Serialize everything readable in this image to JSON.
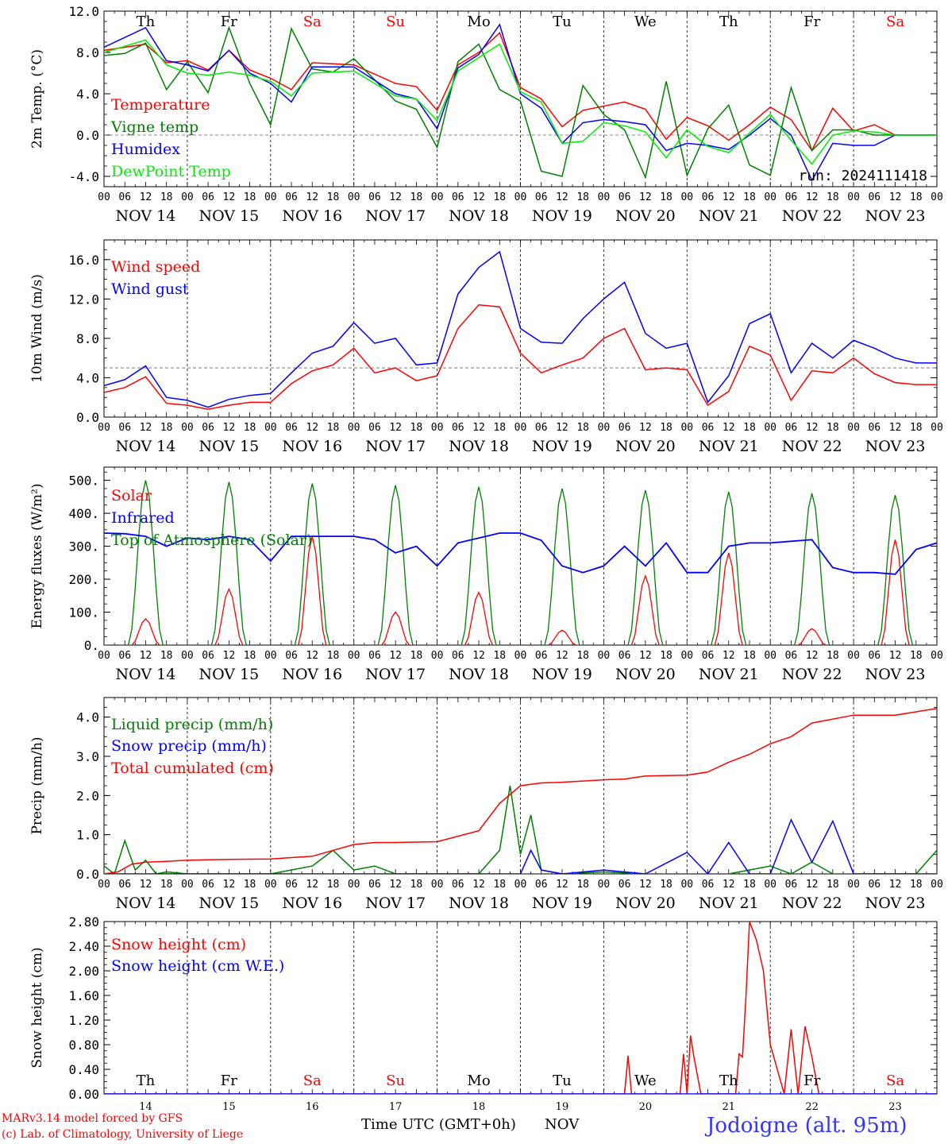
{
  "run_label": "run: 2024111418",
  "footer": {
    "credit_line1": "MARv3.14 model forced by GFS",
    "credit_line2": "(c) Lab. of Climatology, University of Liege",
    "time_axis_label": "Time UTC (GMT+0h)",
    "month_label": "NOV",
    "station": "Jodoigne (alt. 95m)"
  },
  "day_labels": [
    "Th",
    "Fr",
    "Sa",
    "Su",
    "Mo",
    "Tu",
    "We",
    "Th",
    "Fr",
    "Sa"
  ],
  "weekend_color": "#ff0000",
  "weekday_color": "#000000",
  "date_labels": [
    "NOV 14",
    "NOV 15",
    "NOV 16",
    "NOV 17",
    "NOV 18",
    "NOV 19",
    "NOV 20",
    "NOV 21",
    "NOV 22",
    "NOV 23"
  ],
  "bottom_day_numbers": [
    "14",
    "15",
    "16",
    "17",
    "18",
    "19",
    "20",
    "21",
    "22",
    "23"
  ],
  "hour_ticks": [
    "00",
    "06",
    "12",
    "18"
  ],
  "last_hour_tick": "00",
  "chart_data": [
    {
      "type": "line",
      "ylabel": "2m Temp. (°C)",
      "ylim": [
        -5,
        12
      ],
      "yticks": [
        "12.0",
        "8.0",
        "4.0",
        "0.0",
        "-4.0"
      ],
      "ytick_values": [
        12,
        8,
        4,
        0,
        -4
      ],
      "reference_line": 0,
      "x_unit": "hours since Nov 14 00 UTC",
      "series": [
        {
          "name": "Temperature",
          "color": "#ff0000",
          "x": [
            0,
            12,
            18,
            24,
            30,
            36,
            42,
            48,
            54,
            60,
            66,
            72,
            84,
            90,
            96,
            102,
            108,
            114,
            120,
            126,
            132,
            138,
            144,
            150,
            156,
            162,
            168,
            174,
            180,
            186,
            192,
            198,
            204,
            210,
            216,
            222,
            228,
            234,
            240
          ],
          "values": [
            8.2,
            8.8,
            7.0,
            7.2,
            6.3,
            8.2,
            6.3,
            5.5,
            4.4,
            7.0,
            6.9,
            6.8,
            5.0,
            4.7,
            2.4,
            6.8,
            8.0,
            9.9,
            4.6,
            3.5,
            0.8,
            2.4,
            2.8,
            3.2,
            2.5,
            -0.4,
            1.7,
            0.9,
            -0.5,
            1.0,
            2.7,
            1.5,
            -1.5,
            2.6,
            0.4,
            1.0,
            0.0,
            0.0,
            0.0
          ]
        },
        {
          "name": "Vigne temp",
          "color": "#008000",
          "x": [
            0,
            6,
            12,
            18,
            24,
            30,
            36,
            42,
            48,
            54,
            60,
            66,
            72,
            84,
            90,
            96,
            102,
            108,
            114,
            120,
            126,
            132,
            138,
            144,
            150,
            156,
            162,
            168,
            174,
            180,
            186,
            192,
            198,
            204,
            210,
            216,
            222,
            228,
            234,
            240
          ],
          "values": [
            7.7,
            7.9,
            8.9,
            4.4,
            7.1,
            4.1,
            10.4,
            5.0,
            1.0,
            10.3,
            6.4,
            6.1,
            7.4,
            3.3,
            2.5,
            -1.2,
            7.1,
            8.8,
            4.4,
            3.3,
            -3.5,
            -4.0,
            4.8,
            2.0,
            0.5,
            -4.1,
            5.2,
            -3.9,
            0.6,
            2.9,
            -2.9,
            -3.9,
            4.6,
            -1.5,
            0.5,
            0.5,
            0.0,
            0.0,
            0.0,
            0.0
          ]
        },
        {
          "name": "Humidex",
          "color": "#0000ff",
          "x": [
            0,
            12,
            18,
            24,
            30,
            36,
            42,
            48,
            54,
            60,
            66,
            72,
            84,
            90,
            96,
            102,
            108,
            114,
            120,
            126,
            132,
            138,
            144,
            150,
            156,
            162,
            168,
            174,
            180,
            186,
            192,
            198,
            204,
            210,
            216,
            222,
            228,
            234,
            240
          ],
          "values": [
            8.5,
            10.4,
            7.2,
            6.8,
            6.2,
            8.2,
            6.0,
            5.0,
            3.2,
            6.6,
            6.6,
            6.6,
            4.0,
            3.5,
            0.6,
            6.5,
            7.8,
            10.7,
            4.0,
            2.6,
            -0.8,
            1.2,
            1.5,
            1.3,
            1.0,
            -1.5,
            -0.8,
            -1.0,
            -1.4,
            0.0,
            1.6,
            0.0,
            -4.4,
            -0.8,
            -1.0,
            -1.0,
            0.0,
            0.0,
            0.0
          ]
        },
        {
          "name": "DewPoint Temp",
          "color": "#00ee00",
          "x": [
            0,
            12,
            18,
            24,
            30,
            36,
            42,
            48,
            54,
            60,
            66,
            72,
            84,
            90,
            96,
            102,
            108,
            114,
            120,
            126,
            132,
            138,
            144,
            150,
            156,
            162,
            168,
            174,
            180,
            186,
            192,
            198,
            204,
            210,
            216,
            222,
            228,
            234,
            240
          ],
          "values": [
            8.0,
            9.2,
            6.8,
            6.0,
            5.8,
            6.1,
            5.8,
            5.2,
            3.8,
            6.0,
            6.1,
            6.2,
            3.8,
            3.5,
            1.4,
            6.2,
            7.5,
            8.8,
            4.2,
            3.2,
            -0.8,
            -0.6,
            1.2,
            0.9,
            0.3,
            -2.2,
            0.5,
            -1.1,
            -1.7,
            0.2,
            2.0,
            -0.5,
            -2.8,
            0.0,
            0.4,
            0.3,
            0.0,
            0.0,
            0.0
          ]
        }
      ]
    },
    {
      "type": "line",
      "ylabel": "10m Wind (m/s)",
      "ylim": [
        0,
        18
      ],
      "yticks": [
        "16.0",
        "12.0",
        "8.0",
        "4.0",
        "0.0"
      ],
      "ytick_values": [
        16,
        12,
        8,
        4,
        0
      ],
      "reference_line": 5,
      "x_unit": "hours since Nov 14 00 UTC",
      "series": [
        {
          "name": "Wind speed",
          "color": "#ff0000",
          "x": [
            0,
            6,
            12,
            18,
            24,
            30,
            36,
            42,
            48,
            54,
            60,
            66,
            72,
            78,
            84,
            90,
            96,
            102,
            108,
            114,
            120,
            126,
            132,
            138,
            144,
            150,
            156,
            162,
            168,
            174,
            180,
            186,
            192,
            198,
            204,
            210,
            216,
            222,
            228,
            234,
            240
          ],
          "values": [
            2.5,
            3.0,
            4.1,
            1.4,
            1.2,
            0.8,
            1.2,
            1.5,
            1.5,
            3.4,
            4.7,
            5.3,
            7.0,
            4.5,
            5.0,
            3.7,
            4.2,
            9.0,
            11.4,
            11.2,
            6.5,
            4.5,
            5.3,
            6.0,
            8.0,
            9.0,
            4.8,
            5.0,
            4.8,
            1.2,
            2.6,
            7.2,
            6.3,
            1.7,
            4.7,
            4.5,
            6.0,
            4.4,
            3.5,
            3.3,
            3.3
          ]
        },
        {
          "name": "Wind gust",
          "color": "#0000ff",
          "x": [
            0,
            6,
            12,
            18,
            24,
            30,
            36,
            42,
            48,
            54,
            60,
            66,
            72,
            78,
            84,
            90,
            96,
            102,
            108,
            114,
            120,
            126,
            132,
            138,
            144,
            150,
            156,
            162,
            168,
            174,
            180,
            186,
            192,
            198,
            204,
            210,
            216,
            222,
            228,
            234,
            240
          ],
          "values": [
            3.2,
            3.8,
            5.2,
            2.0,
            1.7,
            1.0,
            1.8,
            2.2,
            2.4,
            4.5,
            6.5,
            7.2,
            9.6,
            7.5,
            8.0,
            5.3,
            5.5,
            12.5,
            15.2,
            16.8,
            9.0,
            7.6,
            7.5,
            10.0,
            12.0,
            13.7,
            8.5,
            7.0,
            7.5,
            1.5,
            4.2,
            9.5,
            10.5,
            4.5,
            7.5,
            6.0,
            7.8,
            7.0,
            6.0,
            5.5,
            5.5
          ]
        }
      ]
    },
    {
      "type": "line",
      "ylabel": "Energy fluxes (W/m²)",
      "ylim": [
        0,
        540
      ],
      "yticks": [
        "500.",
        "400.",
        "300.",
        "200.",
        "100.",
        "0."
      ],
      "ytick_values": [
        500,
        400,
        300,
        200,
        100,
        0
      ],
      "x_unit": "hours since Nov 14 00 UTC",
      "daylight_peaks": {
        "top_of_atmosphere": [
          500,
          495,
          490,
          485,
          480,
          475,
          470,
          465,
          460,
          455
        ],
        "solar": [
          80,
          170,
          330,
          100,
          160,
          45,
          210,
          280,
          50,
          320
        ]
      },
      "series": [
        {
          "name": "Solar",
          "color": "#ff0000"
        },
        {
          "name": "Infrared",
          "color": "#0000ff",
          "x": [
            0,
            6,
            12,
            18,
            24,
            30,
            36,
            42,
            48,
            54,
            60,
            66,
            72,
            78,
            84,
            90,
            96,
            102,
            108,
            114,
            120,
            126,
            132,
            138,
            144,
            150,
            156,
            162,
            168,
            174,
            180,
            186,
            192,
            198,
            204,
            210,
            216,
            222,
            228,
            234,
            240
          ],
          "values": [
            340,
            338,
            330,
            300,
            325,
            320,
            330,
            320,
            255,
            330,
            330,
            330,
            330,
            320,
            280,
            300,
            240,
            310,
            325,
            340,
            340,
            318,
            240,
            220,
            240,
            300,
            240,
            310,
            220,
            220,
            300,
            310,
            310,
            315,
            320,
            235,
            220,
            220,
            215,
            290,
            310
          ]
        },
        {
          "name": "Top of Atmosphere (Solar)",
          "color": "#008000"
        }
      ]
    },
    {
      "type": "line",
      "ylabel": "Precip (mm/h)",
      "ylim": [
        0,
        4.5
      ],
      "yticks": [
        "4.0",
        "3.0",
        "2.0",
        "1.0",
        "0.0"
      ],
      "ytick_values": [
        4,
        3,
        2,
        1,
        0
      ],
      "x_unit": "hours since Nov 14 00 UTC",
      "series": [
        {
          "name": "Liquid precip (mm/h)",
          "color": "#008000",
          "x": [
            0,
            3,
            6,
            9,
            12,
            15,
            18,
            24,
            48,
            60,
            66,
            72,
            78,
            84,
            96,
            108,
            114,
            117,
            120,
            123,
            126,
            132,
            144,
            156,
            168,
            180,
            192,
            198,
            204,
            210,
            216,
            222,
            228,
            234,
            240
          ],
          "values": [
            0.2,
            0.0,
            0.85,
            0.1,
            0.35,
            0.0,
            0.05,
            0.0,
            0.0,
            0.2,
            0.6,
            0.1,
            0.2,
            0.0,
            0.0,
            0.0,
            0.6,
            2.25,
            0.5,
            1.5,
            0.1,
            0.0,
            0.05,
            0.0,
            0.0,
            0.0,
            0.2,
            0.0,
            0.3,
            0.0,
            0.0,
            0.0,
            0.0,
            0.0,
            0.6
          ]
        },
        {
          "name": "Snow precip (mm/h)",
          "color": "#0000ff",
          "x": [
            0,
            114,
            120,
            123,
            126,
            132,
            144,
            156,
            168,
            174,
            180,
            186,
            192,
            198,
            204,
            210,
            216,
            222,
            228,
            234,
            240
          ],
          "values": [
            0.0,
            0.0,
            0.0,
            0.6,
            0.1,
            0.0,
            0.1,
            0.0,
            0.55,
            0.0,
            0.8,
            0.0,
            0.0,
            1.38,
            0.3,
            1.35,
            0.0,
            0.0,
            0.0,
            0.0,
            0.0
          ]
        },
        {
          "name": "Total cumulated (cm)",
          "color": "#ff0000",
          "x": [
            0,
            4,
            8,
            12,
            18,
            24,
            36,
            48,
            60,
            72,
            78,
            84,
            96,
            108,
            114,
            120,
            126,
            132,
            144,
            150,
            156,
            168,
            174,
            180,
            186,
            192,
            198,
            204,
            216,
            228,
            240
          ],
          "values": [
            0.0,
            0.05,
            0.25,
            0.3,
            0.32,
            0.35,
            0.37,
            0.38,
            0.45,
            0.75,
            0.8,
            0.8,
            0.82,
            1.1,
            1.8,
            2.25,
            2.32,
            2.34,
            2.4,
            2.42,
            2.5,
            2.52,
            2.6,
            2.85,
            3.05,
            3.32,
            3.5,
            3.85,
            4.05,
            4.05,
            4.22
          ]
        }
      ]
    },
    {
      "type": "line",
      "ylabel": "Snow height (cm)",
      "ylim": [
        0,
        2.8
      ],
      "yticks": [
        "2.80",
        "2.40",
        "2.00",
        "1.60",
        "1.20",
        "0.80",
        "0.40",
        "0.00"
      ],
      "ytick_values": [
        2.8,
        2.4,
        2.0,
        1.6,
        1.2,
        0.8,
        0.4,
        0.0
      ],
      "x_unit": "hours since Nov 14 00 UTC",
      "series": [
        {
          "name": "Snow height (cm)",
          "color": "#ff0000",
          "x": [
            0,
            150,
            151,
            152,
            166,
            167,
            168,
            169,
            170,
            172,
            182,
            183,
            184,
            185,
            186,
            188,
            190,
            192,
            196,
            198,
            200,
            202,
            204,
            206,
            240
          ],
          "values": [
            0.0,
            0.0,
            0.62,
            0.0,
            0.0,
            0.65,
            0.0,
            0.95,
            0.6,
            0.0,
            0.0,
            0.65,
            0.6,
            1.6,
            2.8,
            2.5,
            2.0,
            0.8,
            0.0,
            1.05,
            0.0,
            1.1,
            0.6,
            0.0,
            0.0
          ]
        },
        {
          "name": "Snow height (cm W.E.)",
          "color": "#0000ff",
          "x": [
            0,
            240
          ],
          "values": [
            0.0,
            0.0
          ]
        }
      ]
    }
  ]
}
